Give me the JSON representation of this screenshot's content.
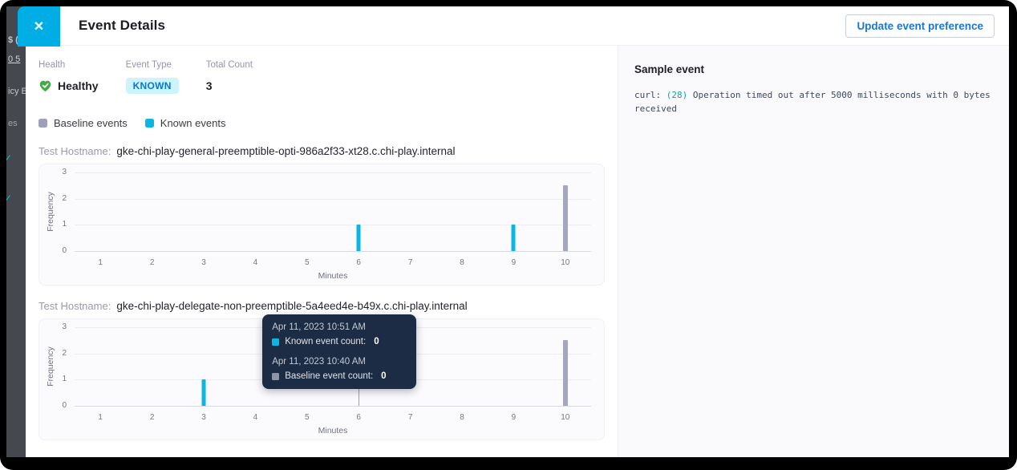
{
  "backdrop": {
    "fragments": [
      {
        "text": "$ (Ex",
        "teal": false
      },
      {
        "text": "0 5",
        "teal": false
      },
      {
        "text": "icy E",
        "teal": false
      },
      {
        "text": "es",
        "teal": false
      },
      {
        "text": "✓",
        "teal": true
      },
      {
        "text": "✓",
        "teal": true
      }
    ]
  },
  "modal": {
    "title": "Event Details",
    "close_label": "✕",
    "update_button_label": "Update event preference"
  },
  "summary": {
    "health_label": "Health",
    "health_value": "Healthy",
    "event_type_label": "Event Type",
    "event_type_value": "KNOWN",
    "total_count_label": "Total Count",
    "total_count_value": "3"
  },
  "legend": [
    {
      "label": "Baseline events",
      "color": "#9ea0ba"
    },
    {
      "label": "Known events",
      "color": "#0bb6e2"
    }
  ],
  "sample_event": {
    "title": "Sample event",
    "parts": [
      {
        "text": "curl: ",
        "highlight": false
      },
      {
        "text": "(28)",
        "highlight": true
      },
      {
        "text": " Operation timed out after 5000 milliseconds with 0 bytes received",
        "highlight": false
      }
    ]
  },
  "colors": {
    "close_button": "#00ade4",
    "accent_blue": "#1a78d2",
    "known_badge_bg": "#cdf4fe",
    "known_badge_text": "#0278d5",
    "healthy_green": "#42ab45",
    "known_color": "#0bb6e2",
    "baseline_color": "#a5a6c0",
    "tooltip_bg": "#1c2c44",
    "code_text": "#3e4763",
    "code_highlight": "#0ba7a0"
  },
  "chart_data": [
    {
      "type": "bar",
      "hostname_label": "Test Hostname:",
      "hostname": "gke-chi-play-general-preemptible-opti-986a2f33-xt28.c.chi-play.internal",
      "xlabel": "Minutes",
      "ylabel": "Frequency",
      "x_ticks": [
        1,
        2,
        3,
        4,
        5,
        6,
        7,
        8,
        9,
        10
      ],
      "y_ticks": [
        0,
        1,
        2,
        3
      ],
      "ylim": [
        0,
        3
      ],
      "grid": true,
      "series": [
        {
          "name": "Baseline events",
          "color": "#a5a6c0",
          "values": [
            0,
            0,
            0,
            0,
            0,
            0,
            0,
            0,
            0,
            2.5
          ]
        },
        {
          "name": "Known events",
          "color": "#0bb6e2",
          "values": [
            0,
            0,
            0,
            0,
            0,
            1,
            0,
            0,
            1,
            0
          ]
        }
      ]
    },
    {
      "type": "bar",
      "hostname_label": "Test Hostname:",
      "hostname": "gke-chi-play-delegate-non-preemptible-5a4eed4e-b49x.c.chi-play.internal",
      "xlabel": "Minutes",
      "ylabel": "Frequency",
      "x_ticks": [
        1,
        2,
        3,
        4,
        5,
        6,
        7,
        8,
        9,
        10
      ],
      "y_ticks": [
        0,
        1,
        2,
        3
      ],
      "ylim": [
        0,
        3
      ],
      "grid": true,
      "crosshair_x": 6,
      "series": [
        {
          "name": "Baseline events",
          "color": "#a5a6c0",
          "values": [
            0,
            0,
            0,
            0,
            0,
            0,
            0,
            0,
            0,
            2.5
          ]
        },
        {
          "name": "Known events",
          "color": "#0bb6e2",
          "values": [
            0,
            0,
            1,
            0,
            0,
            0,
            0,
            0,
            0,
            0
          ]
        }
      ],
      "tooltip": {
        "groups": [
          {
            "date": "Apr 11, 2023 10:51 AM",
            "swatch": "#0bb6e2",
            "label": "Known event count:",
            "value": "0"
          },
          {
            "date": "Apr 11, 2023 10:40 AM",
            "swatch": "#8f93a8",
            "label": "Baseline event count:",
            "value": "0"
          }
        ]
      }
    }
  ]
}
